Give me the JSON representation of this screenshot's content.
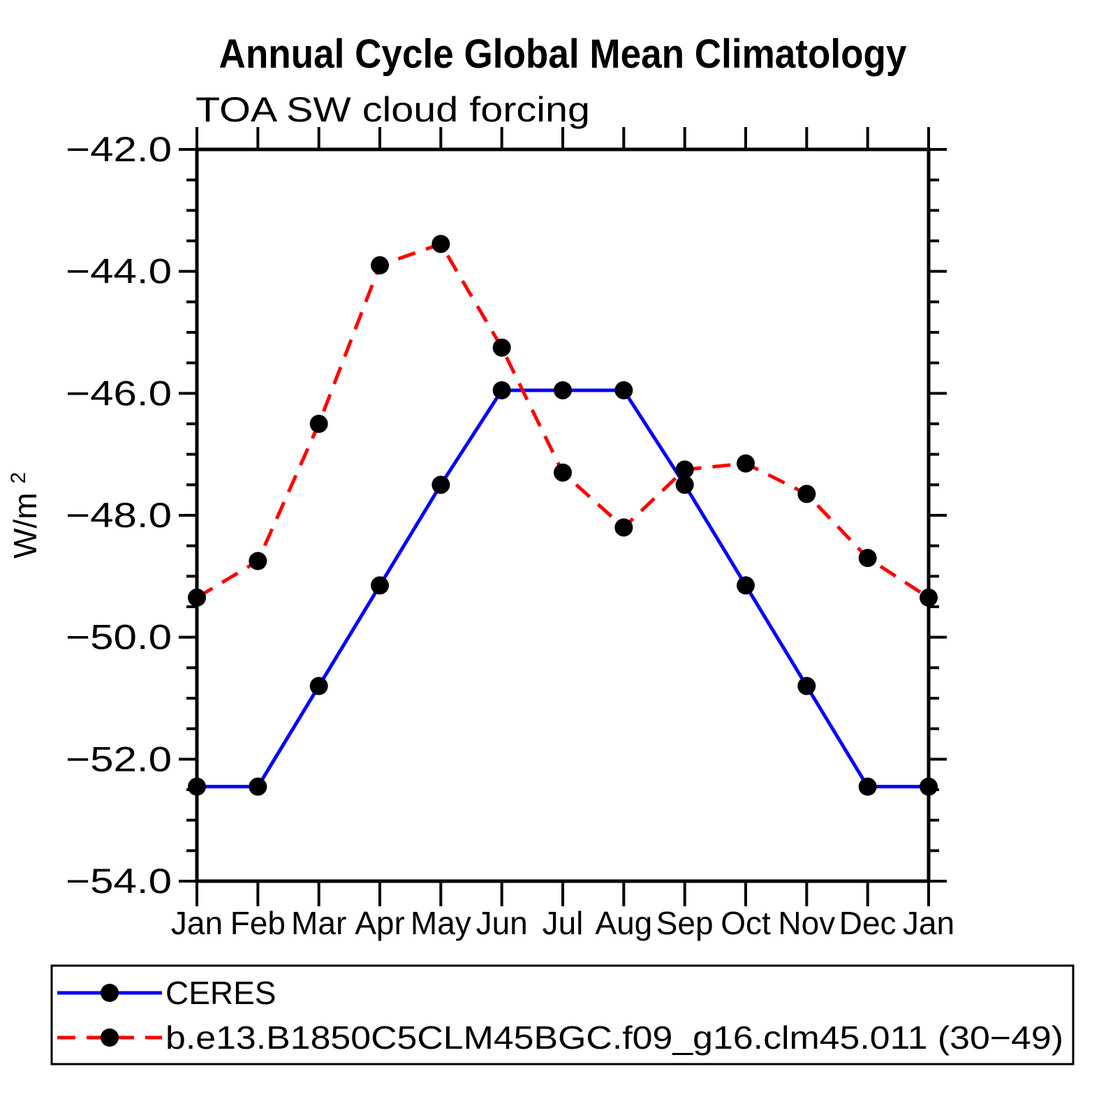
{
  "chart_data": {
    "type": "line",
    "title": "Annual Cycle Global Mean Climatology",
    "subtitle": "TOA SW cloud forcing",
    "ylabel_unit": "W/m",
    "ylabel_exponent": "2",
    "x_categories": [
      "Jan",
      "Feb",
      "Mar",
      "Apr",
      "May",
      "Jun",
      "Jul",
      "Aug",
      "Sep",
      "Oct",
      "Nov",
      "Dec",
      "Jan"
    ],
    "ylim": [
      -54.0,
      -42.0
    ],
    "ytick_major_values": [
      -42.0,
      -44.0,
      -46.0,
      -48.0,
      -50.0,
      -52.0,
      -54.0
    ],
    "ytick_major_labels": [
      "−42.0",
      "−44.0",
      "−46.0",
      "−48.0",
      "−50.0",
      "−52.0",
      "−54.0"
    ],
    "ytick_minor_step": 0.5,
    "grid": false,
    "frame_color": "#000000",
    "legend_position": "bottom-left-box",
    "series": [
      {
        "name": "CERES",
        "line_color": "#0000FF",
        "line_style": "solid",
        "marker": "filled-circle",
        "marker_color": "#000000",
        "values": [
          -52.45,
          -52.45,
          -50.8,
          -49.15,
          -47.5,
          -45.95,
          -45.95,
          -45.95,
          -47.5,
          -49.15,
          -50.8,
          -52.45,
          -52.45
        ]
      },
      {
        "name": "b.e13.B1850C5CLM45BGC.f09_g16.clm45.011 (30−49)",
        "line_color": "#FF0000",
        "line_style": "dashed",
        "marker": "filled-circle",
        "marker_color": "#000000",
        "values": [
          -49.35,
          -48.75,
          -46.5,
          -43.9,
          -43.55,
          -45.25,
          -47.3,
          -48.2,
          -47.25,
          -47.15,
          -47.65,
          -48.7,
          -49.35
        ]
      }
    ]
  }
}
